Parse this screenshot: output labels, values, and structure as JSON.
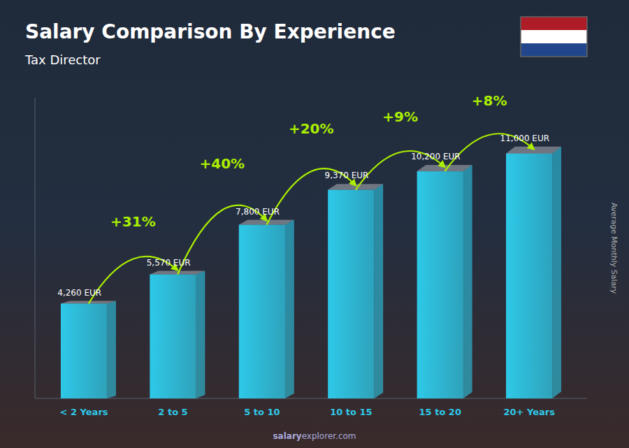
{
  "chart_data": {
    "type": "bar",
    "title": "Salary Comparison By Experience",
    "subtitle": "Tax Director",
    "ylabel": "Average Monthly Salary",
    "watermark": [
      "salary",
      "explorer.com"
    ],
    "categories": [
      "< 2 Years",
      "2 to 5",
      "5 to 10",
      "10 to 15",
      "15 to 20",
      "20+ Years"
    ],
    "values": [
      4260,
      5570,
      7800,
      9370,
      10200,
      11000
    ],
    "value_labels": [
      "4,260 EUR",
      "5,570 EUR",
      "7,800 EUR",
      "9,370 EUR",
      "10,200 EUR",
      "11,000 EUR"
    ],
    "data_labels": true,
    "annotations": [
      "+31%",
      "+40%",
      "+20%",
      "+9%",
      "+8%"
    ],
    "color": "#2ec9e8",
    "ylim": [
      0,
      13500
    ],
    "tick_labels": "x",
    "grid": false
  }
}
